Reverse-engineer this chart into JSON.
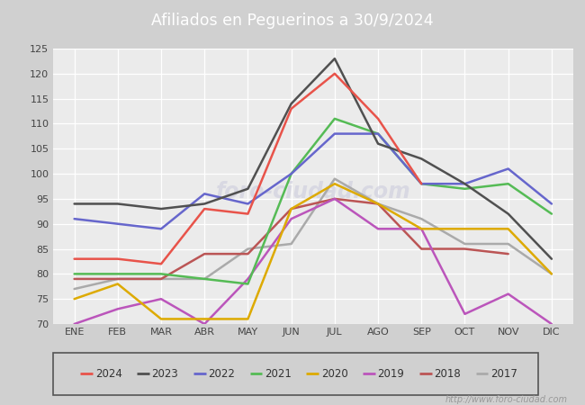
{
  "title": "Afiliados en Peguerinos a 30/9/2024",
  "ylim": [
    70,
    125
  ],
  "yticks": [
    70,
    75,
    80,
    85,
    90,
    95,
    100,
    105,
    110,
    115,
    120,
    125
  ],
  "months": [
    "ENE",
    "FEB",
    "MAR",
    "ABR",
    "MAY",
    "JUN",
    "JUL",
    "AGO",
    "SEP",
    "OCT",
    "NOV",
    "DIC"
  ],
  "series": {
    "2024": {
      "color": "#e8534a",
      "data": [
        83,
        83,
        82,
        93,
        92,
        113,
        120,
        111,
        98,
        null,
        null,
        null
      ]
    },
    "2023": {
      "color": "#505050",
      "data": [
        94,
        94,
        93,
        94,
        97,
        114,
        123,
        106,
        103,
        98,
        92,
        83
      ]
    },
    "2022": {
      "color": "#6666cc",
      "data": [
        91,
        90,
        89,
        96,
        94,
        100,
        108,
        108,
        98,
        98,
        101,
        94
      ]
    },
    "2021": {
      "color": "#55bb55",
      "data": [
        80,
        80,
        80,
        79,
        78,
        100,
        111,
        108,
        98,
        97,
        98,
        92
      ]
    },
    "2020": {
      "color": "#ddaa00",
      "data": [
        75,
        78,
        71,
        71,
        71,
        93,
        98,
        94,
        89,
        89,
        89,
        80
      ]
    },
    "2019": {
      "color": "#bb55bb",
      "data": [
        70,
        73,
        75,
        70,
        79,
        91,
        95,
        89,
        89,
        72,
        76,
        70
      ]
    },
    "2018": {
      "color": "#bb5555",
      "data": [
        79,
        79,
        79,
        84,
        84,
        93,
        95,
        94,
        85,
        85,
        84,
        null
      ]
    },
    "2017": {
      "color": "#aaaaaa",
      "data": [
        77,
        79,
        79,
        79,
        85,
        86,
        99,
        94,
        91,
        86,
        86,
        80
      ]
    }
  },
  "legend_years": [
    "2024",
    "2023",
    "2022",
    "2021",
    "2020",
    "2019",
    "2018",
    "2017"
  ],
  "url": "http://www.foro-ciudad.com",
  "title_bg": "#4d79c7",
  "plot_bg": "#ebebeb",
  "grid_color": "#ffffff"
}
